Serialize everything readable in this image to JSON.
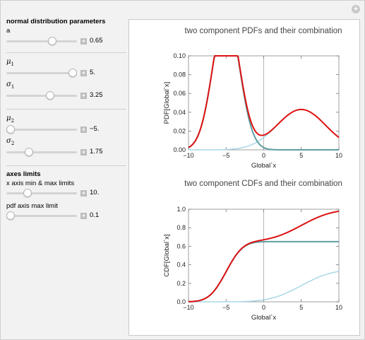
{
  "controls": {
    "section1_title": "normal distribution parameters",
    "a": {
      "label": "a",
      "value": "0.65",
      "fraction": 0.65
    },
    "mu1": {
      "symbol": "μ",
      "sub": "1",
      "value": "5.",
      "fraction": 1.0
    },
    "sigma1": {
      "symbol": "σ",
      "sub": "1",
      "value": "3.25",
      "fraction": 0.64
    },
    "mu2": {
      "symbol": "μ",
      "sub": "2",
      "value": "−5.",
      "fraction": 0.0
    },
    "sigma2": {
      "symbol": "σ",
      "sub": "2",
      "value": "1.75",
      "fraction": 0.3
    },
    "section2_title": "axes limits",
    "xlim": {
      "label": "x axis min & max limits",
      "value": "10.",
      "fraction": 0.28
    },
    "pdflim": {
      "label": "pdf axis max limit",
      "value": "0.1",
      "fraction": 0.0
    }
  },
  "chart_data": [
    {
      "type": "line",
      "title": "two component PDFs and their combination",
      "xlabel": "Global`x",
      "ylabel": "PDF[Global`x]",
      "xlim": [
        -10,
        10
      ],
      "ylim": [
        0,
        0.1
      ],
      "xticks": [
        "−10",
        "−5",
        "0",
        "5",
        "10"
      ],
      "yticks": [
        "0.00",
        "0.02",
        "0.04",
        "0.06",
        "0.08",
        "0.10"
      ],
      "series": [
        {
          "values": "a·N(μ2,σ2) + (1−a)·N(μ1,σ1)",
          "color": "#dd1111"
        },
        {
          "values": "a·N(−5,1.75)",
          "color": "#5f9ea0"
        },
        {
          "values": "(1−a)·N(5,3.25)",
          "color": "#a8d8e8"
        }
      ],
      "params": {
        "a": 0.65,
        "mu1": 5,
        "sigma1": 3.25,
        "mu2": -5,
        "sigma2": 1.75
      }
    },
    {
      "type": "line",
      "title": "two component CDFs and their combination",
      "xlabel": "Global`x",
      "ylabel": "CDF[Global`x]",
      "xlim": [
        -10,
        10
      ],
      "ylim": [
        0,
        1
      ],
      "xticks": [
        "−10",
        "−5",
        "0",
        "5",
        "10"
      ],
      "yticks": [
        "0.0",
        "0.2",
        "0.4",
        "0.6",
        "0.8",
        "1.0"
      ],
      "series": [
        {
          "values": "combined CDF",
          "color": "#dd1111"
        },
        {
          "values": "a·Φ((x+5)/1.75)",
          "color": "#5f9ea0"
        },
        {
          "values": "(1−a)·Φ((x−5)/3.25)",
          "color": "#a8d8e8"
        }
      ],
      "params": {
        "a": 0.65,
        "mu1": 5,
        "sigma1": 3.25,
        "mu2": -5,
        "sigma2": 1.75
      }
    }
  ]
}
